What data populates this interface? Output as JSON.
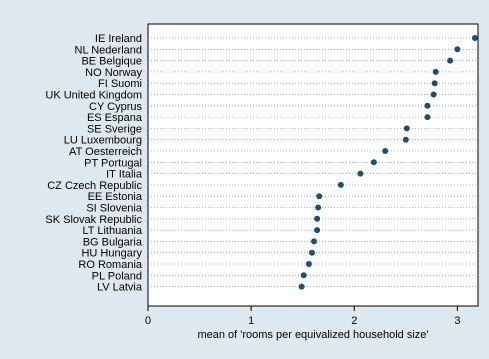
{
  "chart_data": {
    "type": "dot",
    "categories": [
      "IE Ireland",
      "NL Nederland",
      "BE Belgique",
      "NO Norway",
      "FI Suomi",
      "UK United Kingdom",
      "CY Cyprus",
      "ES Espana",
      "SE Sverige",
      "LU Luxembourg",
      "AT Oesterreich",
      "PT Portugal",
      "IT Italia",
      "CZ Czech Republic",
      "EE Estonia",
      "SI Slovenia",
      "SK Slovak Republic",
      "LT Lithuania",
      "BG Bulgaria",
      "HU Hungary",
      "RO Romania",
      "PL Poland",
      "LV Latvia"
    ],
    "values": [
      3.17,
      3.0,
      2.93,
      2.79,
      2.78,
      2.77,
      2.71,
      2.71,
      2.51,
      2.5,
      2.3,
      2.19,
      2.06,
      1.87,
      1.66,
      1.65,
      1.64,
      1.64,
      1.61,
      1.59,
      1.56,
      1.51,
      1.49
    ],
    "title": "",
    "xlabel": "mean of 'rooms per equivalized household size'",
    "ylabel": "",
    "xlim": [
      0,
      3.2
    ],
    "xticks": [
      "0",
      "1",
      "2",
      "3"
    ],
    "grid": "dotted row guides",
    "legend": "none",
    "colors": {
      "background": "#dfe8ee",
      "plot_background": "#ffffff",
      "marker": "#1f4e6e",
      "guide": "#9aa0a6"
    }
  }
}
